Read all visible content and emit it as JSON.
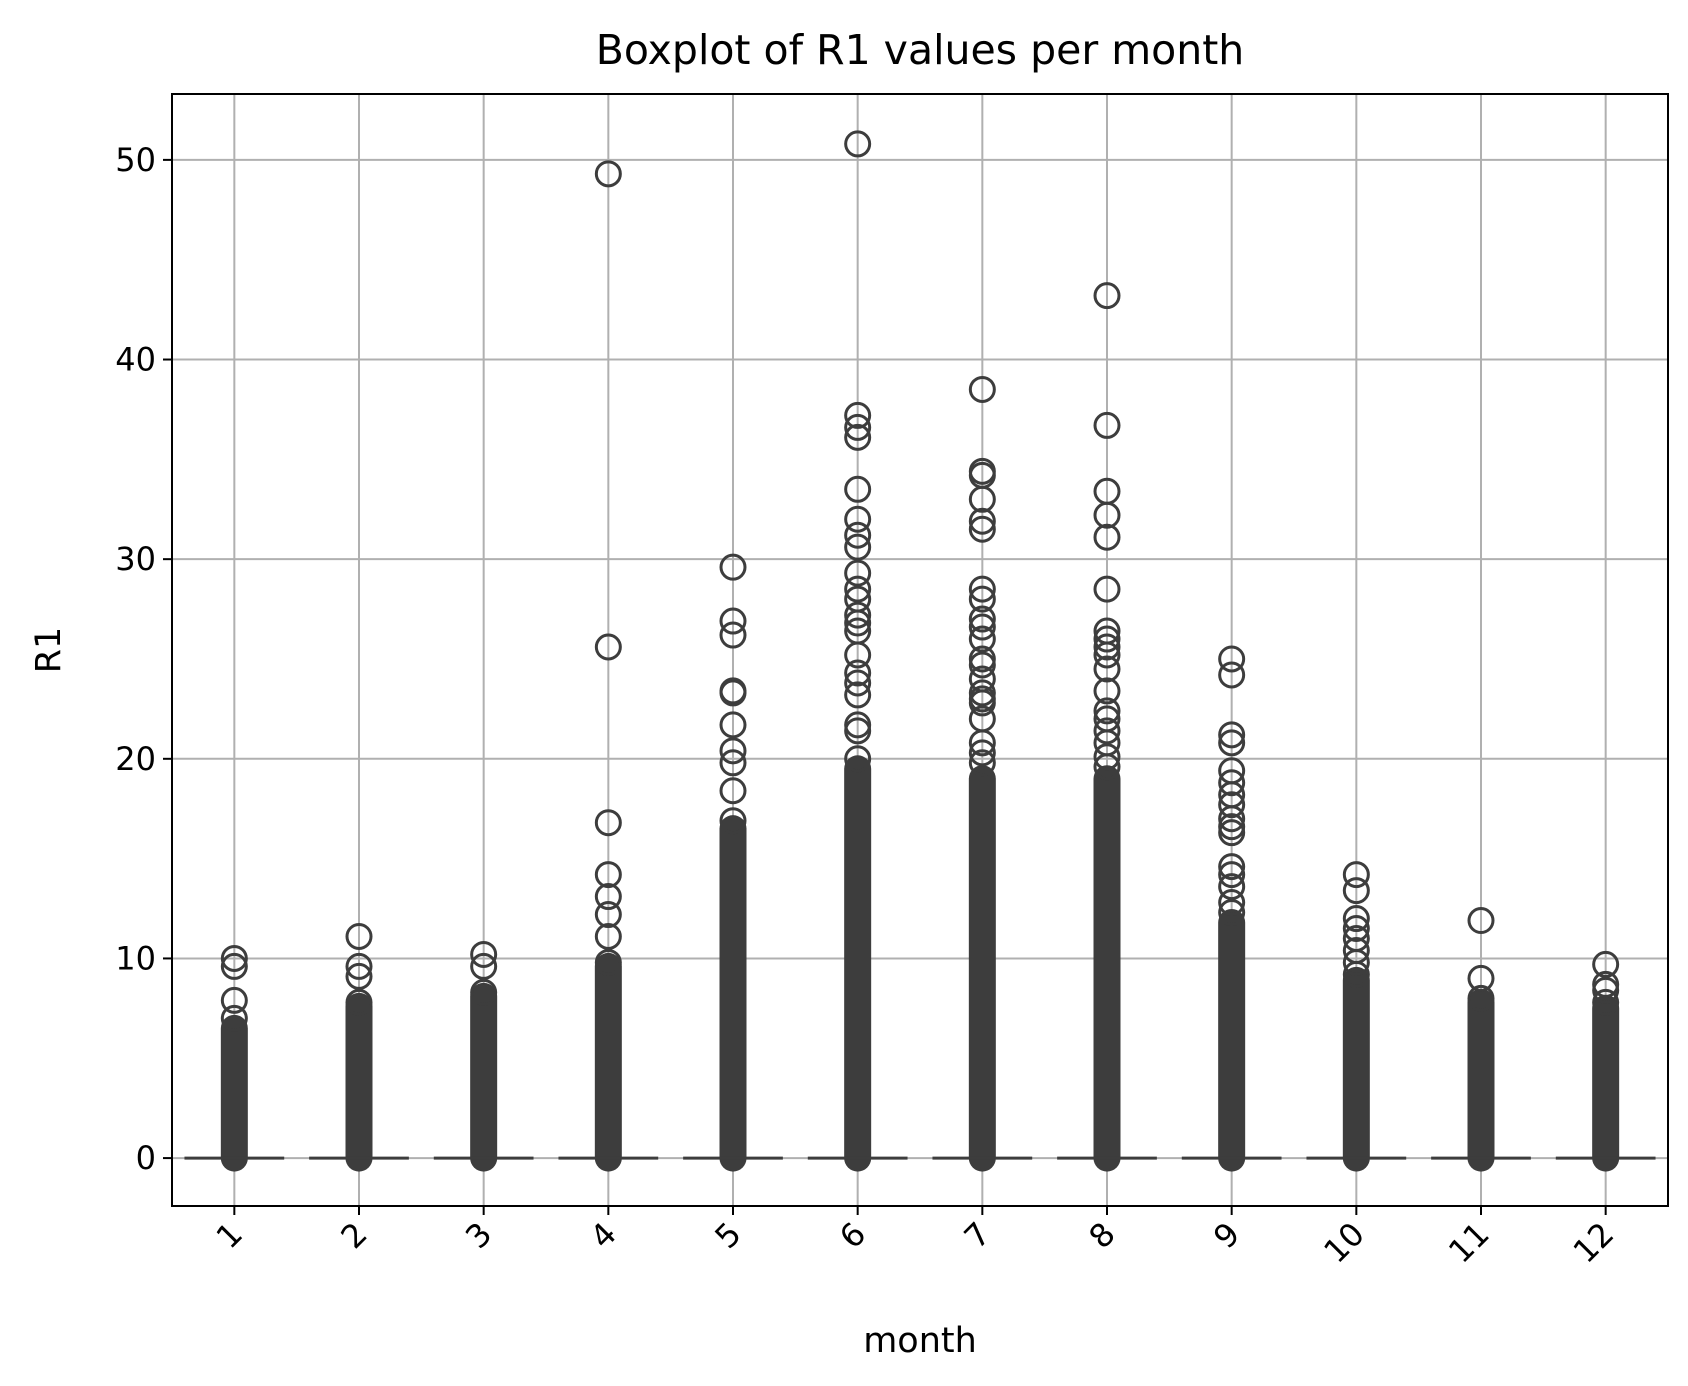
{
  "chart_data": {
    "type": "boxplot",
    "title": "Boxplot of R1 values per month",
    "xlabel": "month",
    "ylabel": "R1",
    "ylim": [
      -2.4,
      53.3
    ],
    "yticks": [
      0,
      10,
      20,
      30,
      40,
      50
    ],
    "grid": true,
    "x_tick_rotation": 45,
    "colors": {
      "marker": "#3d3d3d",
      "grid": "#b0b0b0",
      "frame": "#000000"
    },
    "categories": [
      "1",
      "2",
      "3",
      "4",
      "5",
      "6",
      "7",
      "8",
      "9",
      "10",
      "11",
      "12"
    ],
    "boxes": [
      {
        "month": "1",
        "q1": 0,
        "median": 0,
        "q3": 0,
        "whisker_low": 0,
        "whisker_high": 0,
        "dense_outlier_top": 6.5,
        "outliers": [
          10.0,
          9.6,
          7.9,
          7.0
        ]
      },
      {
        "month": "2",
        "q1": 0,
        "median": 0,
        "q3": 0,
        "whisker_low": 0,
        "whisker_high": 0,
        "dense_outlier_top": 7.6,
        "outliers": [
          11.1,
          9.6,
          9.1,
          7.8
        ]
      },
      {
        "month": "3",
        "q1": 0,
        "median": 0,
        "q3": 0,
        "whisker_low": 0,
        "whisker_high": 0,
        "dense_outlier_top": 8.1,
        "outliers": [
          10.2,
          9.6,
          8.3
        ]
      },
      {
        "month": "4",
        "q1": 0,
        "median": 0,
        "q3": 0,
        "whisker_low": 0,
        "whisker_high": 0,
        "dense_outlier_top": 9.6,
        "outliers": [
          49.3,
          25.6,
          16.8,
          14.2,
          13.1,
          12.2,
          11.1,
          9.8
        ]
      },
      {
        "month": "5",
        "q1": 0,
        "median": 0,
        "q3": 0,
        "whisker_low": 0,
        "whisker_high": 0,
        "dense_outlier_top": 16.5,
        "outliers": [
          29.6,
          26.9,
          26.2,
          23.4,
          23.3,
          21.7,
          20.4,
          19.8,
          18.4,
          16.9
        ]
      },
      {
        "month": "6",
        "q1": 0,
        "median": 0,
        "q3": 0,
        "whisker_low": 0,
        "whisker_high": 0,
        "dense_outlier_top": 19.5,
        "outliers": [
          50.8,
          37.2,
          36.6,
          36.1,
          33.5,
          32.0,
          31.2,
          30.6,
          29.3,
          28.5,
          28.0,
          27.2,
          26.8,
          26.4,
          25.2,
          24.3,
          23.8,
          23.2,
          21.7,
          21.4,
          20.0
        ]
      },
      {
        "month": "7",
        "q1": 0,
        "median": 0,
        "q3": 0,
        "whisker_low": 0,
        "whisker_high": 0,
        "dense_outlier_top": 19.0,
        "outliers": [
          38.5,
          34.4,
          34.2,
          33.0,
          31.9,
          31.5,
          28.5,
          28.0,
          27.0,
          26.6,
          26.0,
          25.0,
          24.7,
          24.0,
          23.3,
          23.0,
          22.8,
          22.0,
          20.8,
          20.3,
          19.8
        ]
      },
      {
        "month": "8",
        "q1": 0,
        "median": 0,
        "q3": 0,
        "whisker_low": 0,
        "whisker_high": 0,
        "dense_outlier_top": 19.0,
        "outliers": [
          43.2,
          36.7,
          33.4,
          32.2,
          31.1,
          28.5,
          26.4,
          26.0,
          25.6,
          25.2,
          24.5,
          23.4,
          22.4,
          22.0,
          21.4,
          20.8,
          20.1,
          19.6
        ]
      },
      {
        "month": "9",
        "q1": 0,
        "median": 0,
        "q3": 0,
        "whisker_low": 0,
        "whisker_high": 0,
        "dense_outlier_top": 11.8,
        "outliers": [
          25.0,
          24.2,
          21.2,
          20.8,
          19.4,
          18.8,
          18.2,
          17.7,
          17.0,
          16.6,
          16.3,
          14.6,
          14.2,
          13.6,
          12.8,
          12.3
        ]
      },
      {
        "month": "10",
        "q1": 0,
        "median": 0,
        "q3": 0,
        "whisker_low": 0,
        "whisker_high": 0,
        "dense_outlier_top": 8.9,
        "outliers": [
          14.2,
          13.4,
          12.0,
          11.5,
          11.0,
          10.4,
          9.8,
          9.2
        ]
      },
      {
        "month": "11",
        "q1": 0,
        "median": 0,
        "q3": 0,
        "whisker_low": 0,
        "whisker_high": 0,
        "dense_outlier_top": 7.8,
        "outliers": [
          11.9,
          9.0,
          8.0
        ]
      },
      {
        "month": "12",
        "q1": 0,
        "median": 0,
        "q3": 0,
        "whisker_low": 0,
        "whisker_high": 0,
        "dense_outlier_top": 7.5,
        "outliers": [
          9.7,
          8.7,
          8.4,
          7.8
        ]
      }
    ]
  }
}
